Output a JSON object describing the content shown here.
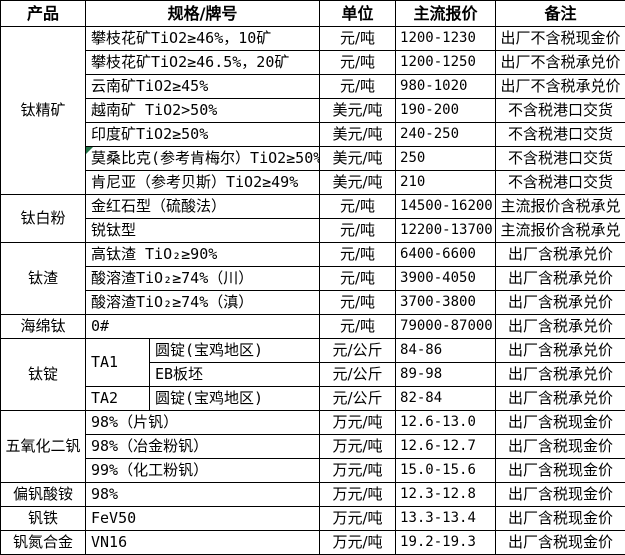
{
  "colors": {
    "border": "#000000",
    "background": "#ffffff",
    "text": "#000000",
    "corner_marker_green": "#217346"
  },
  "header": {
    "columns": [
      {
        "label": "产品",
        "colspan": 1
      },
      {
        "label": "规格/牌号",
        "colspan": 2
      },
      {
        "label": "单位",
        "colspan": 1
      },
      {
        "label": "主流报价",
        "colspan": 1
      },
      {
        "label": "备注",
        "colspan": 1
      }
    ]
  },
  "groups": [
    {
      "product": "钛精矿",
      "rows": [
        {
          "spec": [
            {
              "text": "攀枝花矿TiO2≥46%，10矿",
              "colspan": 2
            }
          ],
          "unit": "元/吨",
          "price": "1200-1230",
          "note": "出厂不含税现金价"
        },
        {
          "spec": [
            {
              "text": "攀枝花矿TiO2≥46.5%，20矿",
              "colspan": 2
            }
          ],
          "unit": "元/吨",
          "price": "1200-1250",
          "note": "出厂不含税承兑价"
        },
        {
          "spec": [
            {
              "text": "云南矿TiO2≥45%",
              "colspan": 2
            }
          ],
          "unit": "元/吨",
          "price": "980-1020",
          "note": "出厂不含税承兑价"
        },
        {
          "spec": [
            {
              "text": "越南矿 TiO2>50%",
              "colspan": 2
            }
          ],
          "unit": "美元/吨",
          "price": "190-200",
          "note": "不含税港口交货"
        },
        {
          "spec": [
            {
              "text": "印度矿TiO2≥50%",
              "colspan": 2
            }
          ],
          "unit": "美元/吨",
          "price": "240-250",
          "note": "不含税港口交货"
        },
        {
          "spec": [
            {
              "text": "莫桑比克(参考肯梅尔）TiO2≥50%",
              "colspan": 2,
              "marker": true
            }
          ],
          "unit": "美元/吨",
          "price": "250",
          "note": "不含税港口交货"
        },
        {
          "spec": [
            {
              "text": "肯尼亚（参考贝斯）TiO2≥49%",
              "colspan": 2
            }
          ],
          "unit": "美元/吨",
          "price": "210",
          "note": "不含税港口交货"
        }
      ]
    },
    {
      "product": "钛白粉",
      "rows": [
        {
          "spec": [
            {
              "text": "金红石型（硫酸法）",
              "colspan": 2
            }
          ],
          "unit": "元/吨",
          "price": "14500-16200",
          "note": "主流报价含税承兑"
        },
        {
          "spec": [
            {
              "text": "锐钛型",
              "colspan": 2
            }
          ],
          "unit": "元/吨",
          "price": "12200-13700",
          "note": "主流报价含税承兑"
        }
      ]
    },
    {
      "product": "钛渣",
      "rows": [
        {
          "spec": [
            {
              "text": "高钛渣 TiO₂≥90%",
              "colspan": 2
            }
          ],
          "unit": "元/吨",
          "price": "6400-6600",
          "note": "出厂含税承兑价"
        },
        {
          "spec": [
            {
              "text": "酸溶渣TiO₂≥74%（川）",
              "colspan": 2
            }
          ],
          "unit": "元/吨",
          "price": "3900-4050",
          "note": "出厂含税承兑价"
        },
        {
          "spec": [
            {
              "text": "酸溶渣TiO₂≥74%（滇）",
              "colspan": 2
            }
          ],
          "unit": "元/吨",
          "price": "3700-3800",
          "note": "出厂含税承兑价"
        }
      ]
    },
    {
      "product": "海绵钛",
      "rows": [
        {
          "spec": [
            {
              "text": "0#",
              "colspan": 2
            }
          ],
          "unit": "元/吨",
          "price": "79000-87000",
          "note": "出厂含税承兑价"
        }
      ]
    },
    {
      "product": "钛锭",
      "rows": [
        {
          "spec": [
            {
              "text": "TA1",
              "rowspan": 2
            },
            {
              "text": "圆锭(宝鸡地区)"
            }
          ],
          "unit": "元/公斤",
          "price": "84-86",
          "note": "出厂含税承兑价"
        },
        {
          "spec": [
            {
              "text": "EB板坯"
            }
          ],
          "unit": "元/公斤",
          "price": "89-98",
          "note": "出厂含税承兑价"
        },
        {
          "spec": [
            {
              "text": "TA2"
            },
            {
              "text": "圆锭(宝鸡地区)"
            }
          ],
          "unit": "元/公斤",
          "price": "82-84",
          "note": "出厂含税承兑价"
        }
      ]
    },
    {
      "product": "五氧化二钒",
      "rows": [
        {
          "spec": [
            {
              "text": "98%（片钒）",
              "colspan": 2
            }
          ],
          "unit": "万元/吨",
          "price": "12.6-13.0",
          "note": "出厂含税现金价"
        },
        {
          "spec": [
            {
              "text": "98%（冶金粉钒）",
              "colspan": 2
            }
          ],
          "unit": "万元/吨",
          "price": "12.6-12.7",
          "note": "出厂含税现金价"
        },
        {
          "spec": [
            {
              "text": "99%（化工粉钒）",
              "colspan": 2
            }
          ],
          "unit": "万元/吨",
          "price": "15.0-15.6",
          "note": "出厂含税现金价"
        }
      ]
    },
    {
      "product": "偏钒酸铵",
      "rows": [
        {
          "spec": [
            {
              "text": "98%",
              "colspan": 2
            }
          ],
          "unit": "万元/吨",
          "price": "12.3-12.8",
          "note": "出厂含税现金价"
        }
      ]
    },
    {
      "product": "钒铁",
      "rows": [
        {
          "spec": [
            {
              "text": "FeV50",
              "colspan": 2
            }
          ],
          "unit": "万元/吨",
          "price": "13.3-13.4",
          "note": "出厂含税现金价"
        }
      ]
    },
    {
      "product": "钒氮合金",
      "rows": [
        {
          "spec": [
            {
              "text": "VN16",
              "colspan": 2
            }
          ],
          "unit": "万元/吨",
          "price": "19.2-19.3",
          "note": "出厂含税现金价"
        }
      ]
    }
  ]
}
